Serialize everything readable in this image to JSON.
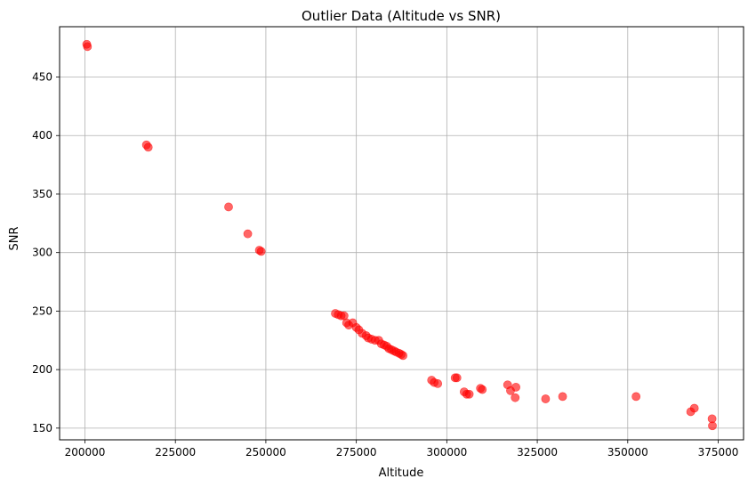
{
  "chart_data": {
    "type": "scatter",
    "title": "Outlier Data (Altitude vs SNR)",
    "xlabel": "Altitude",
    "ylabel": "SNR",
    "xlim": [
      193000,
      382000
    ],
    "ylim": [
      140,
      493
    ],
    "xticks": [
      200000,
      225000,
      250000,
      275000,
      300000,
      325000,
      350000,
      375000
    ],
    "xtick_labels": [
      "200000",
      "225000",
      "250000",
      "275000",
      "300000",
      "325000",
      "350000",
      "375000"
    ],
    "yticks": [
      150,
      200,
      250,
      300,
      350,
      400,
      450
    ],
    "ytick_labels": [
      "150",
      "200",
      "250",
      "300",
      "350",
      "400",
      "450"
    ],
    "grid": true,
    "legend": "none",
    "marker_color": "#ff0000",
    "marker_alpha": 0.6,
    "points": [
      [
        200500,
        478
      ],
      [
        200700,
        476
      ],
      [
        217000,
        392
      ],
      [
        217500,
        390
      ],
      [
        239700,
        339
      ],
      [
        245000,
        316
      ],
      [
        248200,
        302
      ],
      [
        248700,
        301
      ],
      [
        269200,
        248
      ],
      [
        270000,
        247
      ],
      [
        270800,
        246
      ],
      [
        271600,
        246
      ],
      [
        272300,
        240
      ],
      [
        272900,
        238
      ],
      [
        274000,
        240
      ],
      [
        275000,
        236
      ],
      [
        275700,
        234
      ],
      [
        276600,
        231
      ],
      [
        277700,
        229
      ],
      [
        278300,
        227
      ],
      [
        279200,
        226
      ],
      [
        280200,
        225
      ],
      [
        281200,
        225
      ],
      [
        281900,
        222
      ],
      [
        282700,
        221
      ],
      [
        283400,
        220
      ],
      [
        284000,
        218
      ],
      [
        284700,
        217
      ],
      [
        285400,
        216
      ],
      [
        286000,
        215
      ],
      [
        286800,
        214
      ],
      [
        287400,
        213
      ],
      [
        287900,
        212
      ],
      [
        295800,
        191
      ],
      [
        296500,
        189
      ],
      [
        297500,
        188
      ],
      [
        302300,
        193
      ],
      [
        302800,
        193
      ],
      [
        304800,
        181
      ],
      [
        305500,
        179
      ],
      [
        306200,
        179
      ],
      [
        309300,
        184
      ],
      [
        309800,
        183
      ],
      [
        316800,
        187
      ],
      [
        317600,
        182
      ],
      [
        318900,
        176
      ],
      [
        319100,
        185
      ],
      [
        327300,
        175
      ],
      [
        332000,
        177
      ],
      [
        352300,
        177
      ],
      [
        367400,
        164
      ],
      [
        368400,
        167
      ],
      [
        373300,
        158
      ],
      [
        373400,
        152
      ]
    ]
  }
}
